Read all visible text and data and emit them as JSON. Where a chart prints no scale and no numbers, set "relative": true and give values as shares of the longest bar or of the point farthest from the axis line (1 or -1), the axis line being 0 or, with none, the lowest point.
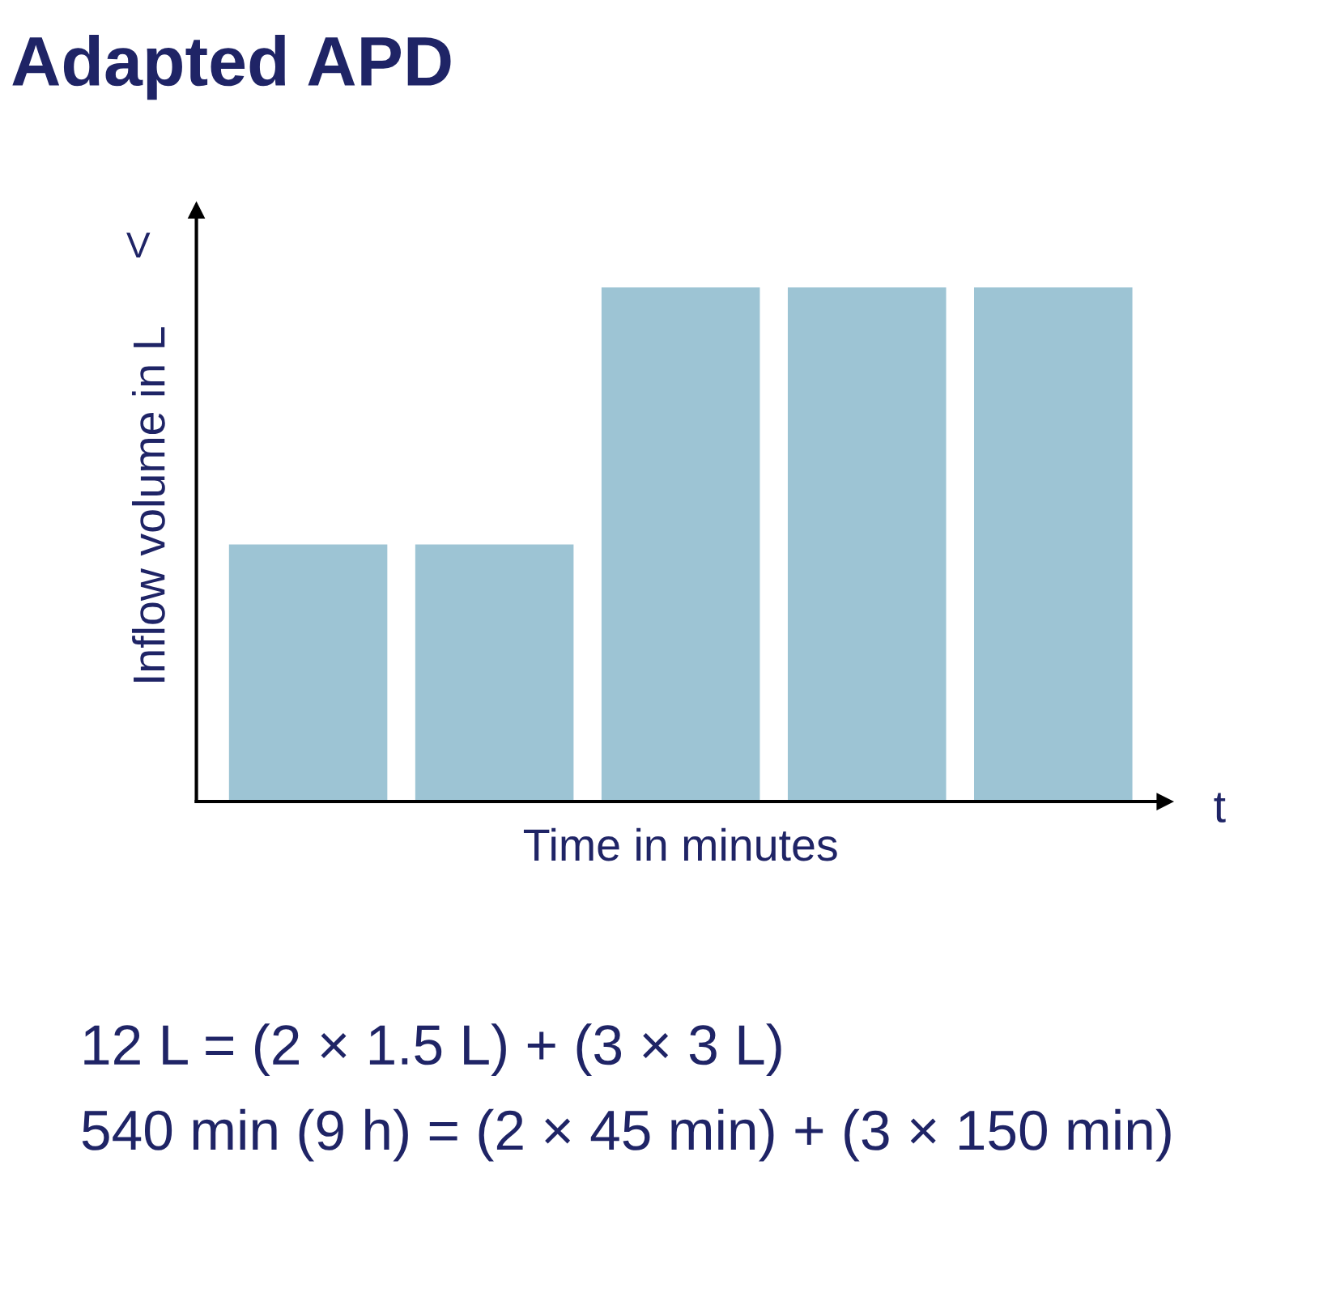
{
  "chart_data": {
    "type": "bar",
    "title": "Adapted APD",
    "xlabel": "Time in minutes",
    "ylabel": "Inflow volume in L",
    "categories": [
      null,
      null,
      null,
      null,
      null
    ],
    "values": [
      0.5,
      0.5,
      1,
      1,
      1
    ],
    "color": "#9dc4d4",
    "relative": true,
    "grid": false,
    "annotations": [
      "V",
      "t",
      "12 L = (2 × 1.5 L) + (3 × 3 L)",
      "540 min (9 h) = (2 × 45 min) + (3 × 150 min)"
    ]
  }
}
